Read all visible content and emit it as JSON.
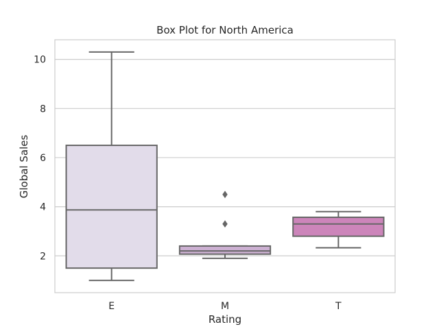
{
  "chart_data": {
    "type": "box",
    "title": "Box Plot for North America",
    "xlabel": "Rating",
    "ylabel": "Global Sales",
    "ylim": [
      0.5,
      10.8
    ],
    "y_ticks": [
      2,
      4,
      6,
      8,
      10
    ],
    "grid": true,
    "categories": [
      "E",
      "M",
      "T"
    ],
    "boxes": [
      {
        "category": "E",
        "min": 1.0,
        "q1": 1.5,
        "median": 3.87,
        "q3": 6.5,
        "max": 10.3,
        "outliers": [],
        "color": "#e2dcea"
      },
      {
        "category": "M",
        "min": 1.9,
        "q1": 2.07,
        "median": 2.2,
        "q3": 2.4,
        "max": 2.4,
        "outliers": [
          3.3,
          4.5
        ],
        "color": "#ccb0d2"
      },
      {
        "category": "T",
        "min": 2.33,
        "q1": 2.8,
        "median": 3.3,
        "q3": 3.57,
        "max": 3.8,
        "outliers": [],
        "color": "#cc85ba"
      }
    ]
  }
}
